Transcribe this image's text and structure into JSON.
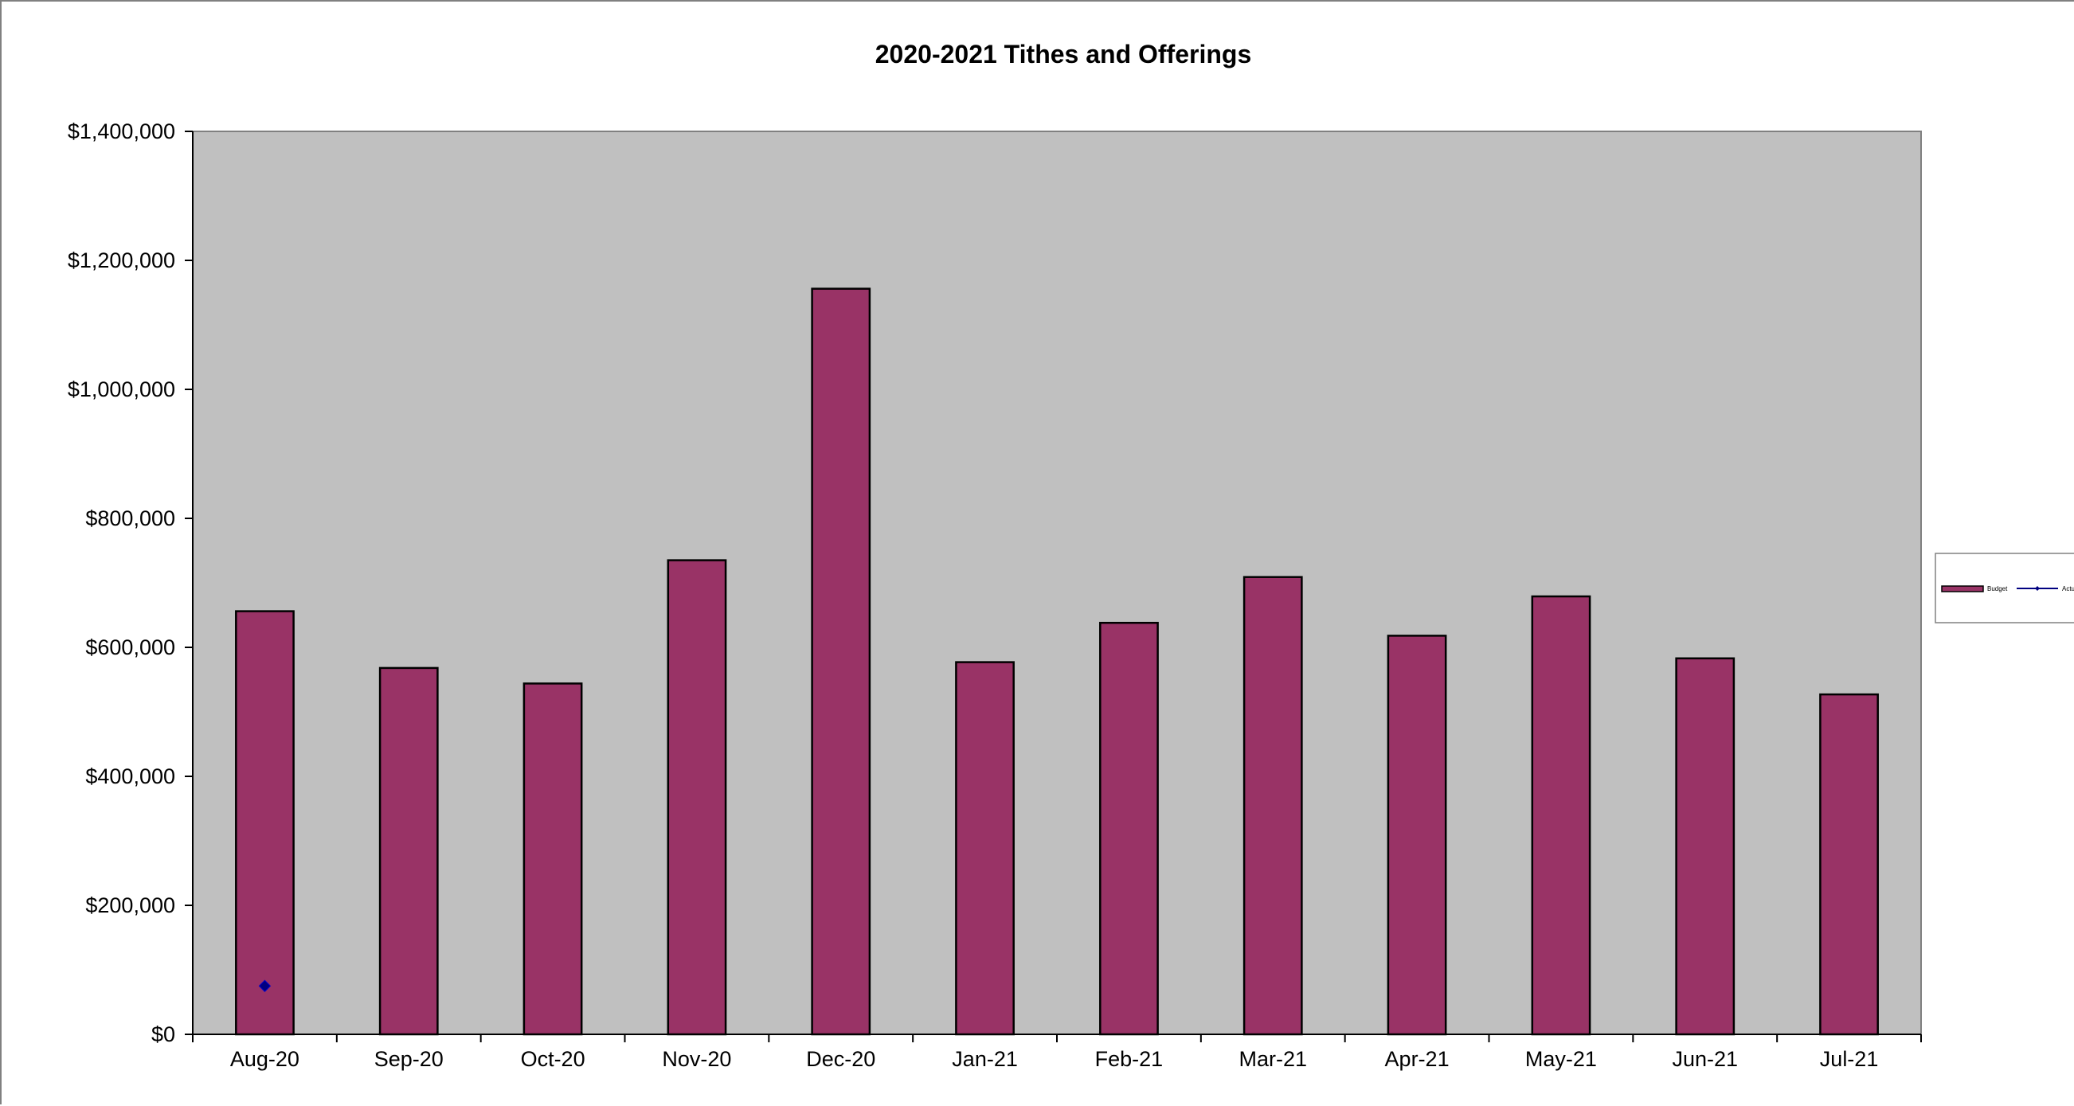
{
  "chart_data": {
    "type": "bar",
    "title": "2020-2021 Tithes and Offerings",
    "xlabel": "",
    "ylabel": "",
    "categories": [
      "Aug-20",
      "Sep-20",
      "Oct-20",
      "Nov-20",
      "Dec-20",
      "Jan-21",
      "Feb-21",
      "Mar-21",
      "Apr-21",
      "May-21",
      "Jun-21",
      "Jul-21"
    ],
    "ylim": [
      0,
      1400000
    ],
    "yticks": [
      0,
      200000,
      400000,
      600000,
      800000,
      1000000,
      1200000,
      1400000
    ],
    "ytick_labels": [
      "$0",
      "$200,000",
      "$400,000",
      "$600,000",
      "$800,000",
      "$1,000,000",
      "$1,200,000",
      "$1,400,000"
    ],
    "series": [
      {
        "name": "Budget",
        "kind": "bar",
        "color": "#993366",
        "values": [
          656000,
          568000,
          544000,
          735000,
          1156000,
          577000,
          638000,
          709000,
          618000,
          679000,
          583000,
          527000
        ]
      },
      {
        "name": "Actual",
        "kind": "line",
        "color": "#000080",
        "marker": "diamond",
        "values": [
          75000,
          null,
          null,
          null,
          null,
          null,
          null,
          null,
          null,
          null,
          null,
          null
        ]
      }
    ],
    "grid": false,
    "plot_background": "#c0c0c0",
    "legend_position": "right"
  }
}
